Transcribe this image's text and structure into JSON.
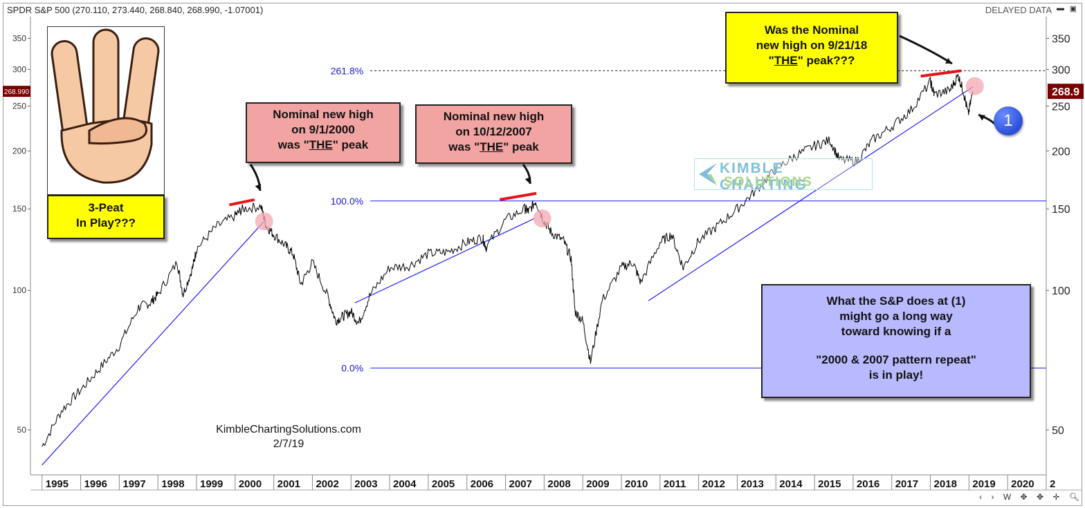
{
  "header": {
    "ticker_label": "SPDR S&P 500 (270.110, 273.440, 268.840, 268.990, -1.07001)",
    "delayed_label": "DELAYED DATA"
  },
  "chart_data": {
    "type": "line",
    "title": "",
    "xlabel": "",
    "ylabel": "",
    "yscale": "log",
    "x_range": [
      1994.7,
      2021.0
    ],
    "ylim": [
      40,
      390
    ],
    "y_ticks_left": [
      50,
      100,
      150,
      200,
      250,
      300,
      350
    ],
    "y_ticks_right": [
      50,
      100,
      150,
      200,
      250,
      300,
      350
    ],
    "x_tick_labels": [
      "1995",
      "1996",
      "1997",
      "1998",
      "1999",
      "2000",
      "2001",
      "2002",
      "2003",
      "2004",
      "2005",
      "2006",
      "2007",
      "2008",
      "2009",
      "2010",
      "2011",
      "2012",
      "2013",
      "2014",
      "2015",
      "2016",
      "2017",
      "2018",
      "2019",
      "2020",
      "2"
    ],
    "grid": false,
    "left_price_label": "268.990",
    "right_price_label": "268.9",
    "series": [
      {
        "name": "",
        "color": "#000000",
        "x": [
          1995.0,
          1995.5,
          1996.0,
          1996.5,
          1997.0,
          1997.5,
          1997.8,
          1998.0,
          1998.5,
          1998.65,
          1998.9,
          1999.0,
          1999.5,
          2000.0,
          2000.2,
          2000.67,
          2000.8,
          2001.0,
          2001.3,
          2001.5,
          2001.7,
          2002.0,
          2002.4,
          2002.6,
          2002.8,
          2003.0,
          2003.2,
          2003.5,
          2004.0,
          2004.5,
          2005.0,
          2005.5,
          2006.0,
          2006.4,
          2006.5,
          2007.0,
          2007.5,
          2007.6,
          2007.78,
          2008.0,
          2008.2,
          2008.5,
          2008.7,
          2008.8,
          2009.0,
          2009.2,
          2009.5,
          2010.0,
          2010.3,
          2010.5,
          2011.0,
          2011.3,
          2011.6,
          2012.0,
          2012.5,
          2013.0,
          2013.5,
          2014.0,
          2014.5,
          2015.0,
          2015.4,
          2015.65,
          2016.1,
          2016.5,
          2017.0,
          2017.5,
          2018.0,
          2018.1,
          2018.5,
          2018.72,
          2018.85,
          2018.98,
          2019.1
        ],
        "y": [
          46,
          55,
          61,
          68,
          76,
          92,
          94,
          98,
          115,
          98,
          112,
          123,
          137,
          145,
          150,
          152,
          138,
          132,
          125,
          120,
          103,
          115,
          97,
          86,
          88,
          90,
          85,
          98,
          112,
          113,
          120,
          121,
          127,
          130,
          124,
          142,
          150,
          148,
          156,
          141,
          133,
          128,
          117,
          90,
          86,
          70,
          95,
          112,
          115,
          104,
          127,
          132,
          112,
          128,
          138,
          150,
          165,
          183,
          195,
          205,
          211,
          191,
          190,
          211,
          226,
          245,
          282,
          265,
          270,
          291,
          270,
          240,
          269
        ]
      }
    ],
    "fib_levels": [
      {
        "label": "261.8%",
        "value": 298
      },
      {
        "label": "100.0%",
        "value": 156
      },
      {
        "label": "0.0%",
        "value": 68
      }
    ],
    "trendlines": [
      {
        "x": [
          1995.0,
          2000.75
        ],
        "y": [
          42,
          141
        ]
      },
      {
        "x": [
          2003.1,
          2007.75
        ],
        "y": [
          94,
          143
        ]
      },
      {
        "x": [
          2010.7,
          2019.1
        ],
        "y": [
          95,
          275
        ]
      }
    ],
    "peak_markers": [
      {
        "x": [
          1999.85,
          2000.5
        ],
        "y": [
          153,
          157
        ]
      },
      {
        "x": [
          2006.85,
          2007.8
        ],
        "y": [
          157,
          162
        ]
      },
      {
        "x": [
          2017.75,
          2018.8
        ],
        "y": [
          290,
          298
        ]
      }
    ],
    "highlight_points": [
      {
        "x": 2000.75,
        "y": 141
      },
      {
        "x": 2007.95,
        "y": 143
      },
      {
        "x": 2019.15,
        "y": 276
      }
    ]
  },
  "annotations": {
    "hand": {
      "label": "3-Peat",
      "label2": "In Play???"
    },
    "peak2000": {
      "line1": "Nominal new high",
      "line2": "on 9/1/2000",
      "line3a": "was \"",
      "line3b": "THE",
      "line3c": "\" peak"
    },
    "peak2007": {
      "line1": "Nominal new high",
      "line2": "on 10/12/2007",
      "line3a": "was \"",
      "line3b": "THE",
      "line3c": "\" peak"
    },
    "peak2018": {
      "line1": "Was the Nominal",
      "line2": "new high on 9/21/18",
      "line3a": "\"",
      "line3b": "THE",
      "line3c": "\" peak???"
    },
    "question": {
      "line1": "What the S&P does at (1)",
      "line2": "might go a long way",
      "line3": "toward knowing if a",
      "line4": "\"2000 & 2007 pattern repeat\"",
      "line5": "is in play!"
    },
    "callout_number": "1",
    "credit_site": "KimbleChartingSolutions.com",
    "credit_date": "2/7/19",
    "watermark_line1": "KIMBLE CHARTING",
    "watermark_line2": "SOLUTIONS"
  },
  "toolbar": {
    "scroll_left": "‹",
    "scroll_right": "›",
    "week": "W",
    "arrows": "✥",
    "cross1": "✥",
    "plus": "✛",
    "zoom_out": "🔍︎"
  },
  "colors": {
    "price": "#000000",
    "trend": "#1a1aff",
    "fib_label": "#1a1ad6",
    "peak_line": "#e3141a",
    "red_note": "#f2a4a2",
    "yellow_note": "#ffff00",
    "lavender_note": "#b9b9ff",
    "highlight": "#f3a7b2"
  }
}
